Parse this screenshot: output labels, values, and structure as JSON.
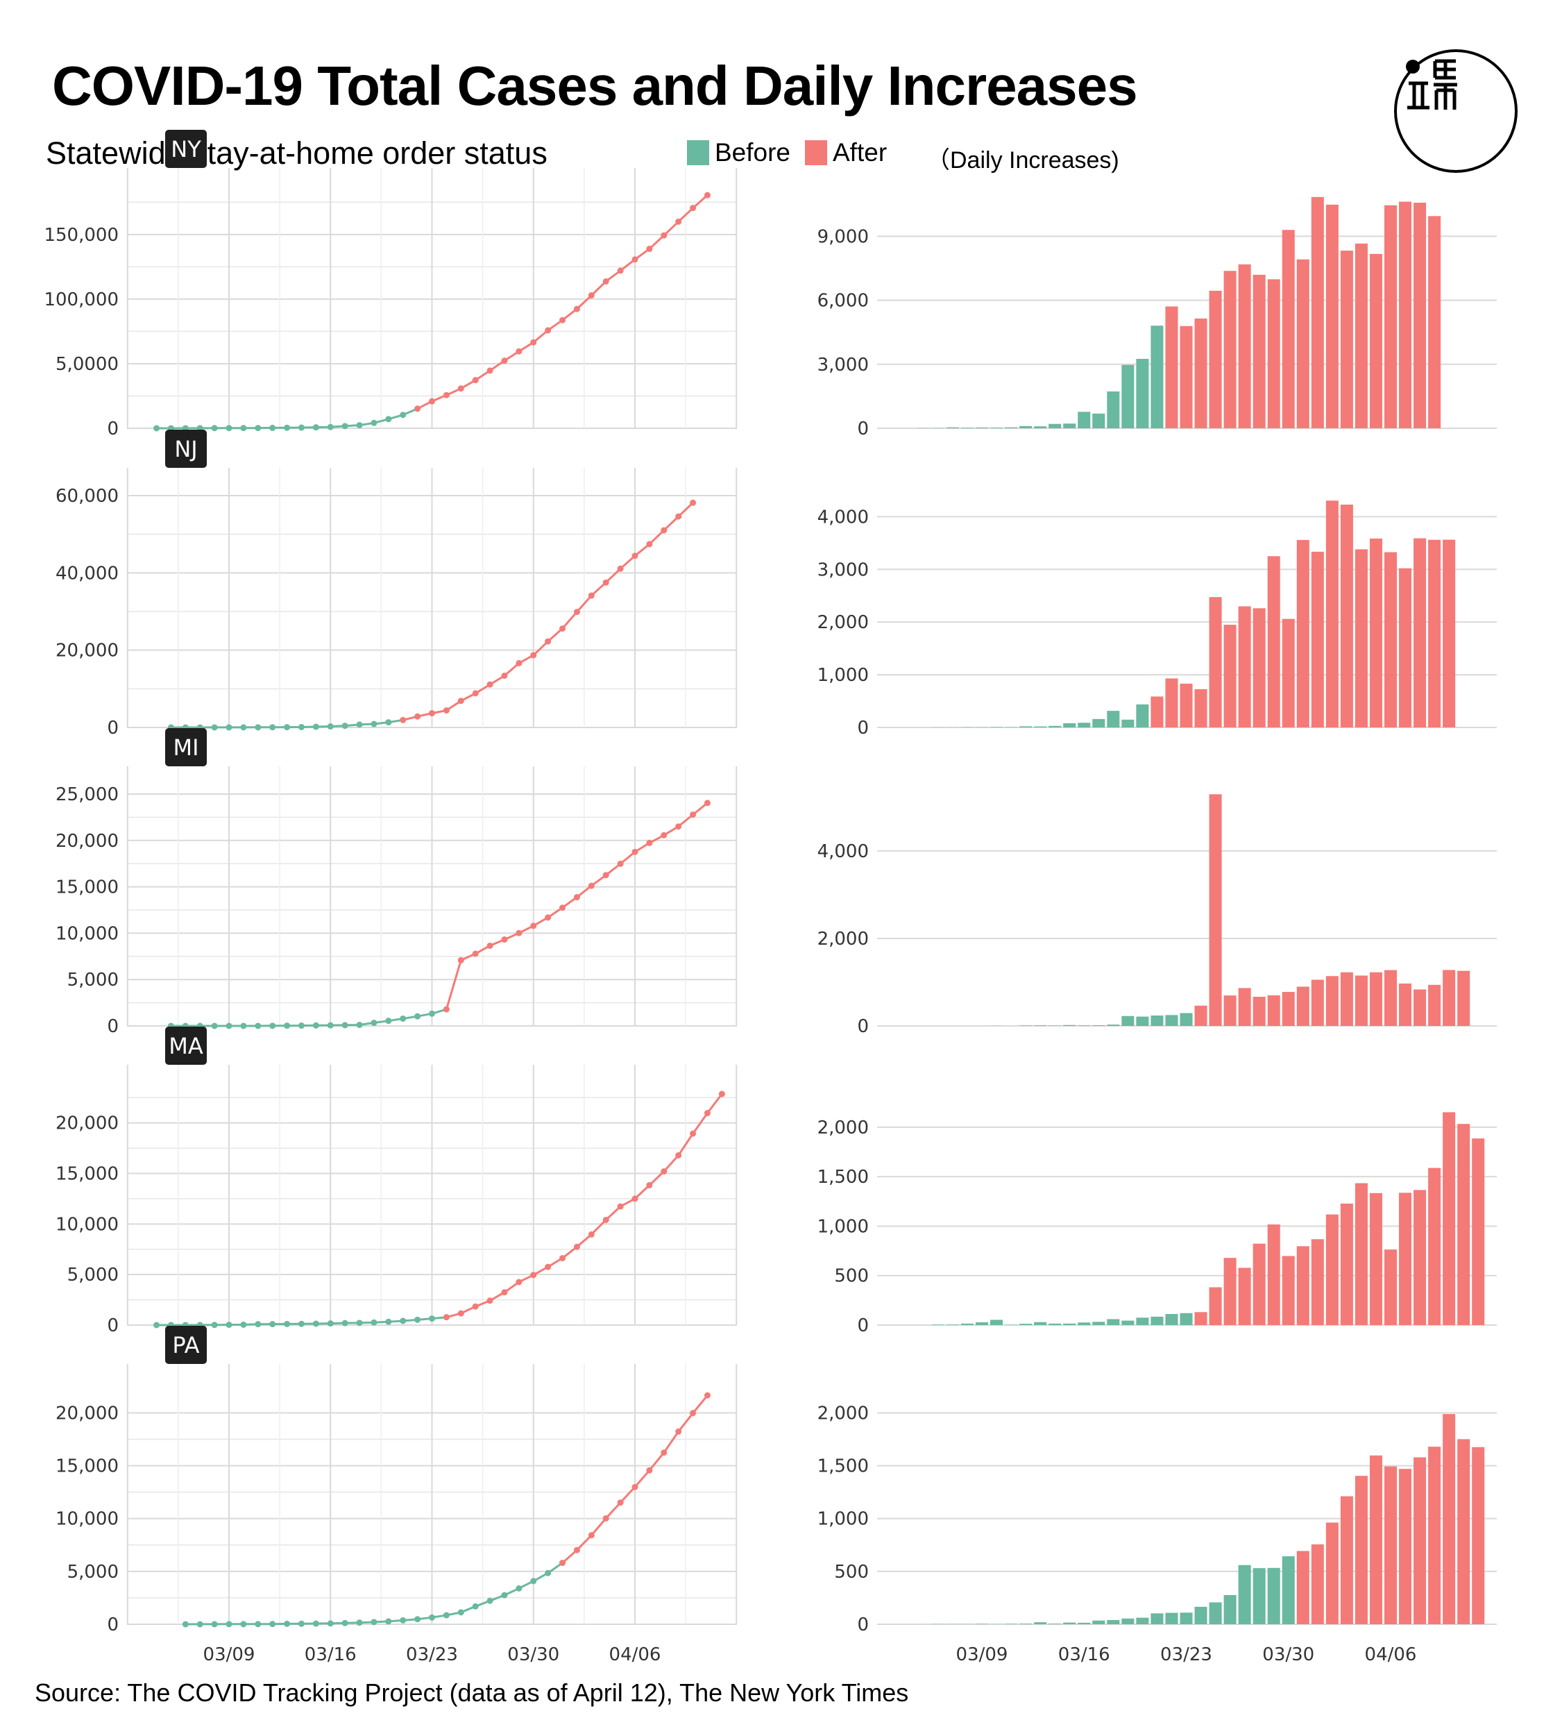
{
  "header": {
    "title": "COVID-19 Total Cases and Daily Increases",
    "subtitle": "Statewide stay-at-home order status",
    "legend": [
      {
        "label": "Before",
        "color": "#69b8a0"
      },
      {
        "label": "After",
        "color": "#f47a77"
      }
    ]
  },
  "daily_panel_label": "（Daily Increases)",
  "source": "Source: The COVID Tracking Project (data as of April 12), The New York Times",
  "logo": {
    "icon": "logo-circle-icon"
  },
  "colors": {
    "before": "#69b8a0",
    "after": "#f47a77",
    "grid": "#d9d9d9",
    "tag_bg": "#1f1f1f"
  },
  "chart_data": [
    {
      "state": "NY",
      "type": "line",
      "title": "NY",
      "x_tick_labels": [
        "03/09",
        "03/16",
        "03/23",
        "03/30",
        "04/06"
      ],
      "y_tick_labels": [
        "0",
        "5,0000",
        "100,000",
        "150,000"
      ],
      "ylim": [
        0,
        180000
      ],
      "first_date": "03/04",
      "last_date": "04/12",
      "order_date": "03/22",
      "values": [
        11,
        22,
        33,
        76,
        105,
        142,
        173,
        216,
        330,
        421,
        524,
        729,
        950,
        1700,
        2382,
        4152,
        7102,
        10356,
        15168,
        20875,
        25665,
        30811,
        37258,
        44635,
        52318,
        59513,
        66497,
        75795,
        83712,
        92381,
        102863,
        113704,
        122031,
        130689,
        138863,
        149316,
        159937,
        170512,
        180458
      ]
    },
    {
      "state": "NY",
      "type": "bar",
      "title": "（Daily Increases)",
      "x_tick_labels": [
        "03/09",
        "03/16",
        "03/23",
        "03/30",
        "04/06"
      ],
      "y_tick_labels": [
        "0",
        "3,000",
        "6,000",
        "9,000"
      ],
      "ylim": [
        0,
        10900
      ],
      "first_date": "03/05",
      "last_date": "04/12",
      "order_date": "03/22",
      "values": [
        11,
        11,
        43,
        29,
        37,
        31,
        43,
        103,
        91,
        205,
        221,
        771,
        689,
        1727,
        2969,
        3254,
        4810,
        5711,
        4790,
        5146,
        6447,
        7377,
        7683,
        7195,
        6984,
        9298,
        7917,
        10841,
        10482,
        8327,
        8658,
        8174,
        10453,
        10621,
        10575,
        9946
      ]
    },
    {
      "state": "NJ",
      "type": "line",
      "title": "NJ",
      "x_tick_labels": [
        "03/09",
        "03/16",
        "03/23",
        "03/30",
        "04/06"
      ],
      "y_tick_labels": [
        "0",
        "20,000",
        "40,000",
        "60,000"
      ],
      "ylim": [
        0,
        60000
      ],
      "first_date": "03/05",
      "last_date": "04/12",
      "order_date": "03/21",
      "values": [
        2,
        4,
        6,
        11,
        15,
        23,
        29,
        50,
        69,
        98,
        178,
        267,
        427,
        742,
        890,
        1327,
        1914,
        2844,
        3675,
        4402,
        6876,
        8825,
        11124,
        13386,
        16636,
        18696,
        22255,
        25590,
        29895,
        34124,
        37505,
        41090,
        44416,
        47437,
        51027,
        54588,
        58151
      ]
    },
    {
      "state": "NJ",
      "type": "bar",
      "title": "",
      "x_tick_labels": [
        "03/09",
        "03/16",
        "03/23",
        "03/30",
        "04/06"
      ],
      "y_tick_labels": [
        "0",
        "1,000",
        "2,000",
        "3,000",
        "4,000"
      ],
      "ylim": [
        0,
        4400
      ],
      "first_date": "03/06",
      "last_date": "04/12",
      "order_date": "03/21",
      "values": [
        2,
        2,
        5,
        4,
        8,
        6,
        21,
        19,
        29,
        80,
        89,
        160,
        315,
        148,
        437,
        587,
        930,
        831,
        727,
        2474,
        1949,
        2299,
        2262,
        3250,
        2060,
        3559,
        3335,
        4305,
        4229,
        3381,
        3585,
        3326,
        3021,
        3590,
        3561,
        3563
      ]
    },
    {
      "state": "MI",
      "type": "line",
      "title": "MI",
      "x_tick_labels": [
        "03/09",
        "03/16",
        "03/23",
        "03/30",
        "04/06"
      ],
      "y_tick_labels": [
        "0",
        "5,000",
        "10,000",
        "15,000",
        "20,000",
        "25,000"
      ],
      "ylim": [
        0,
        25000
      ],
      "first_date": "03/05",
      "last_date": "04/12",
      "order_date": "03/24",
      "values": [
        0,
        0,
        0,
        0,
        0,
        2,
        2,
        12,
        25,
        33,
        53,
        65,
        80,
        110,
        336,
        549,
        787,
        1035,
        1328,
        1791,
        7087,
        7783,
        8649,
        9315,
        10014,
        10791,
        11688,
        12744,
        13883,
        15109,
        16260,
        17486,
        18762,
        19731,
        20565,
        21504,
        22783,
        24042
      ]
    },
    {
      "state": "MI",
      "type": "bar",
      "title": "",
      "x_tick_labels": [
        "03/09",
        "03/16",
        "03/23",
        "03/30",
        "04/06"
      ],
      "y_tick_labels": [
        "0",
        "2,000",
        "4,000"
      ],
      "ylim": [
        0,
        5300
      ],
      "first_date": "03/05",
      "last_date": "04/12",
      "order_date": "03/24",
      "values": [
        0,
        0,
        0,
        0,
        0,
        2,
        0,
        10,
        13,
        8,
        20,
        12,
        15,
        30,
        226,
        213,
        238,
        248,
        293,
        463,
        5296,
        696,
        866,
        666,
        699,
        777,
        897,
        1056,
        1139,
        1226,
        1151,
        1226,
        1276,
        969,
        834,
        939,
        1279,
        1259
      ]
    },
    {
      "state": "MA",
      "type": "line",
      "title": "MA",
      "x_tick_labels": [
        "03/09",
        "03/16",
        "03/23",
        "03/30",
        "04/06"
      ],
      "y_tick_labels": [
        "0",
        "5,000",
        "10,000",
        "15,000",
        "20,000"
      ],
      "ylim": [
        0,
        23000
      ],
      "first_date": "03/04",
      "last_date": "04/12",
      "order_date": "03/24",
      "values": [
        2,
        2,
        3,
        8,
        13,
        28,
        41,
        92,
        95,
        108,
        123,
        138,
        164,
        197,
        218,
        256,
        328,
        413,
        525,
        646,
        777,
        1159,
        1838,
        2417,
        3240,
        4257,
        4955,
        5752,
        6620,
        7738,
        8966,
        10402,
        11736,
        12500,
        13837,
        15202,
        16790,
        18941,
        20974,
        22860
      ]
    },
    {
      "state": "MA",
      "type": "bar",
      "title": "",
      "x_tick_labels": [
        "03/09",
        "03/16",
        "03/23",
        "03/30",
        "04/06"
      ],
      "y_tick_labels": [
        "0",
        "500",
        "1,000",
        "1,500",
        "2,000"
      ],
      "ylim": [
        0,
        2350
      ],
      "first_date": "03/05",
      "last_date": "04/12",
      "order_date": "03/24",
      "values": [
        0,
        5,
        5,
        15,
        28,
        53,
        3,
        13,
        30,
        15,
        15,
        26,
        33,
        60,
        45,
        75,
        85,
        112,
        121,
        131,
        382,
        679,
        579,
        823,
        1017,
        698,
        797,
        868,
        1118,
        1228,
        1434,
        1334,
        764,
        1337,
        1365,
        1588,
        2151,
        2033,
        1886
      ]
    },
    {
      "state": "PA",
      "type": "line",
      "title": "PA",
      "x_tick_labels": [
        "03/09",
        "03/16",
        "03/23",
        "03/30",
        "04/06"
      ],
      "y_tick_labels": [
        "0",
        "5,000",
        "10,000",
        "15,000",
        "20,000"
      ],
      "ylim": [
        0,
        22000
      ],
      "first_date": "03/06",
      "last_date": "04/12",
      "order_date": "04/01",
      "values": [
        2,
        4,
        6,
        10,
        12,
        16,
        22,
        41,
        47,
        63,
        77,
        112,
        152,
        206,
        268,
        371,
        479,
        644,
        851,
        1127,
        1687,
        2218,
        2751,
        3394,
        4087,
        4843,
        5805,
        7016,
        8420,
        10017,
        11510,
        12980,
        14559,
        16239,
        18228,
        19979,
        21655
      ]
    },
    {
      "state": "PA",
      "type": "bar",
      "title": "",
      "x_tick_labels": [
        "03/09",
        "03/16",
        "03/23",
        "03/30",
        "04/06"
      ],
      "y_tick_labels": [
        "0",
        "500",
        "1,000",
        "1,500",
        "2,000"
      ],
      "ylim": [
        0,
        2200
      ],
      "first_date": "03/06",
      "last_date": "04/12",
      "order_date": "03/31",
      "values": [
        2,
        2,
        2,
        4,
        2,
        4,
        6,
        19,
        6,
        16,
        14,
        35,
        40,
        54,
        62,
        103,
        108,
        110,
        165,
        207,
        276,
        560,
        531,
        533,
        643,
        693,
        756,
        962,
        1211,
        1404,
        1597,
        1493,
        1470,
        1579,
        1680,
        1989,
        1751,
        1676
      ]
    }
  ]
}
